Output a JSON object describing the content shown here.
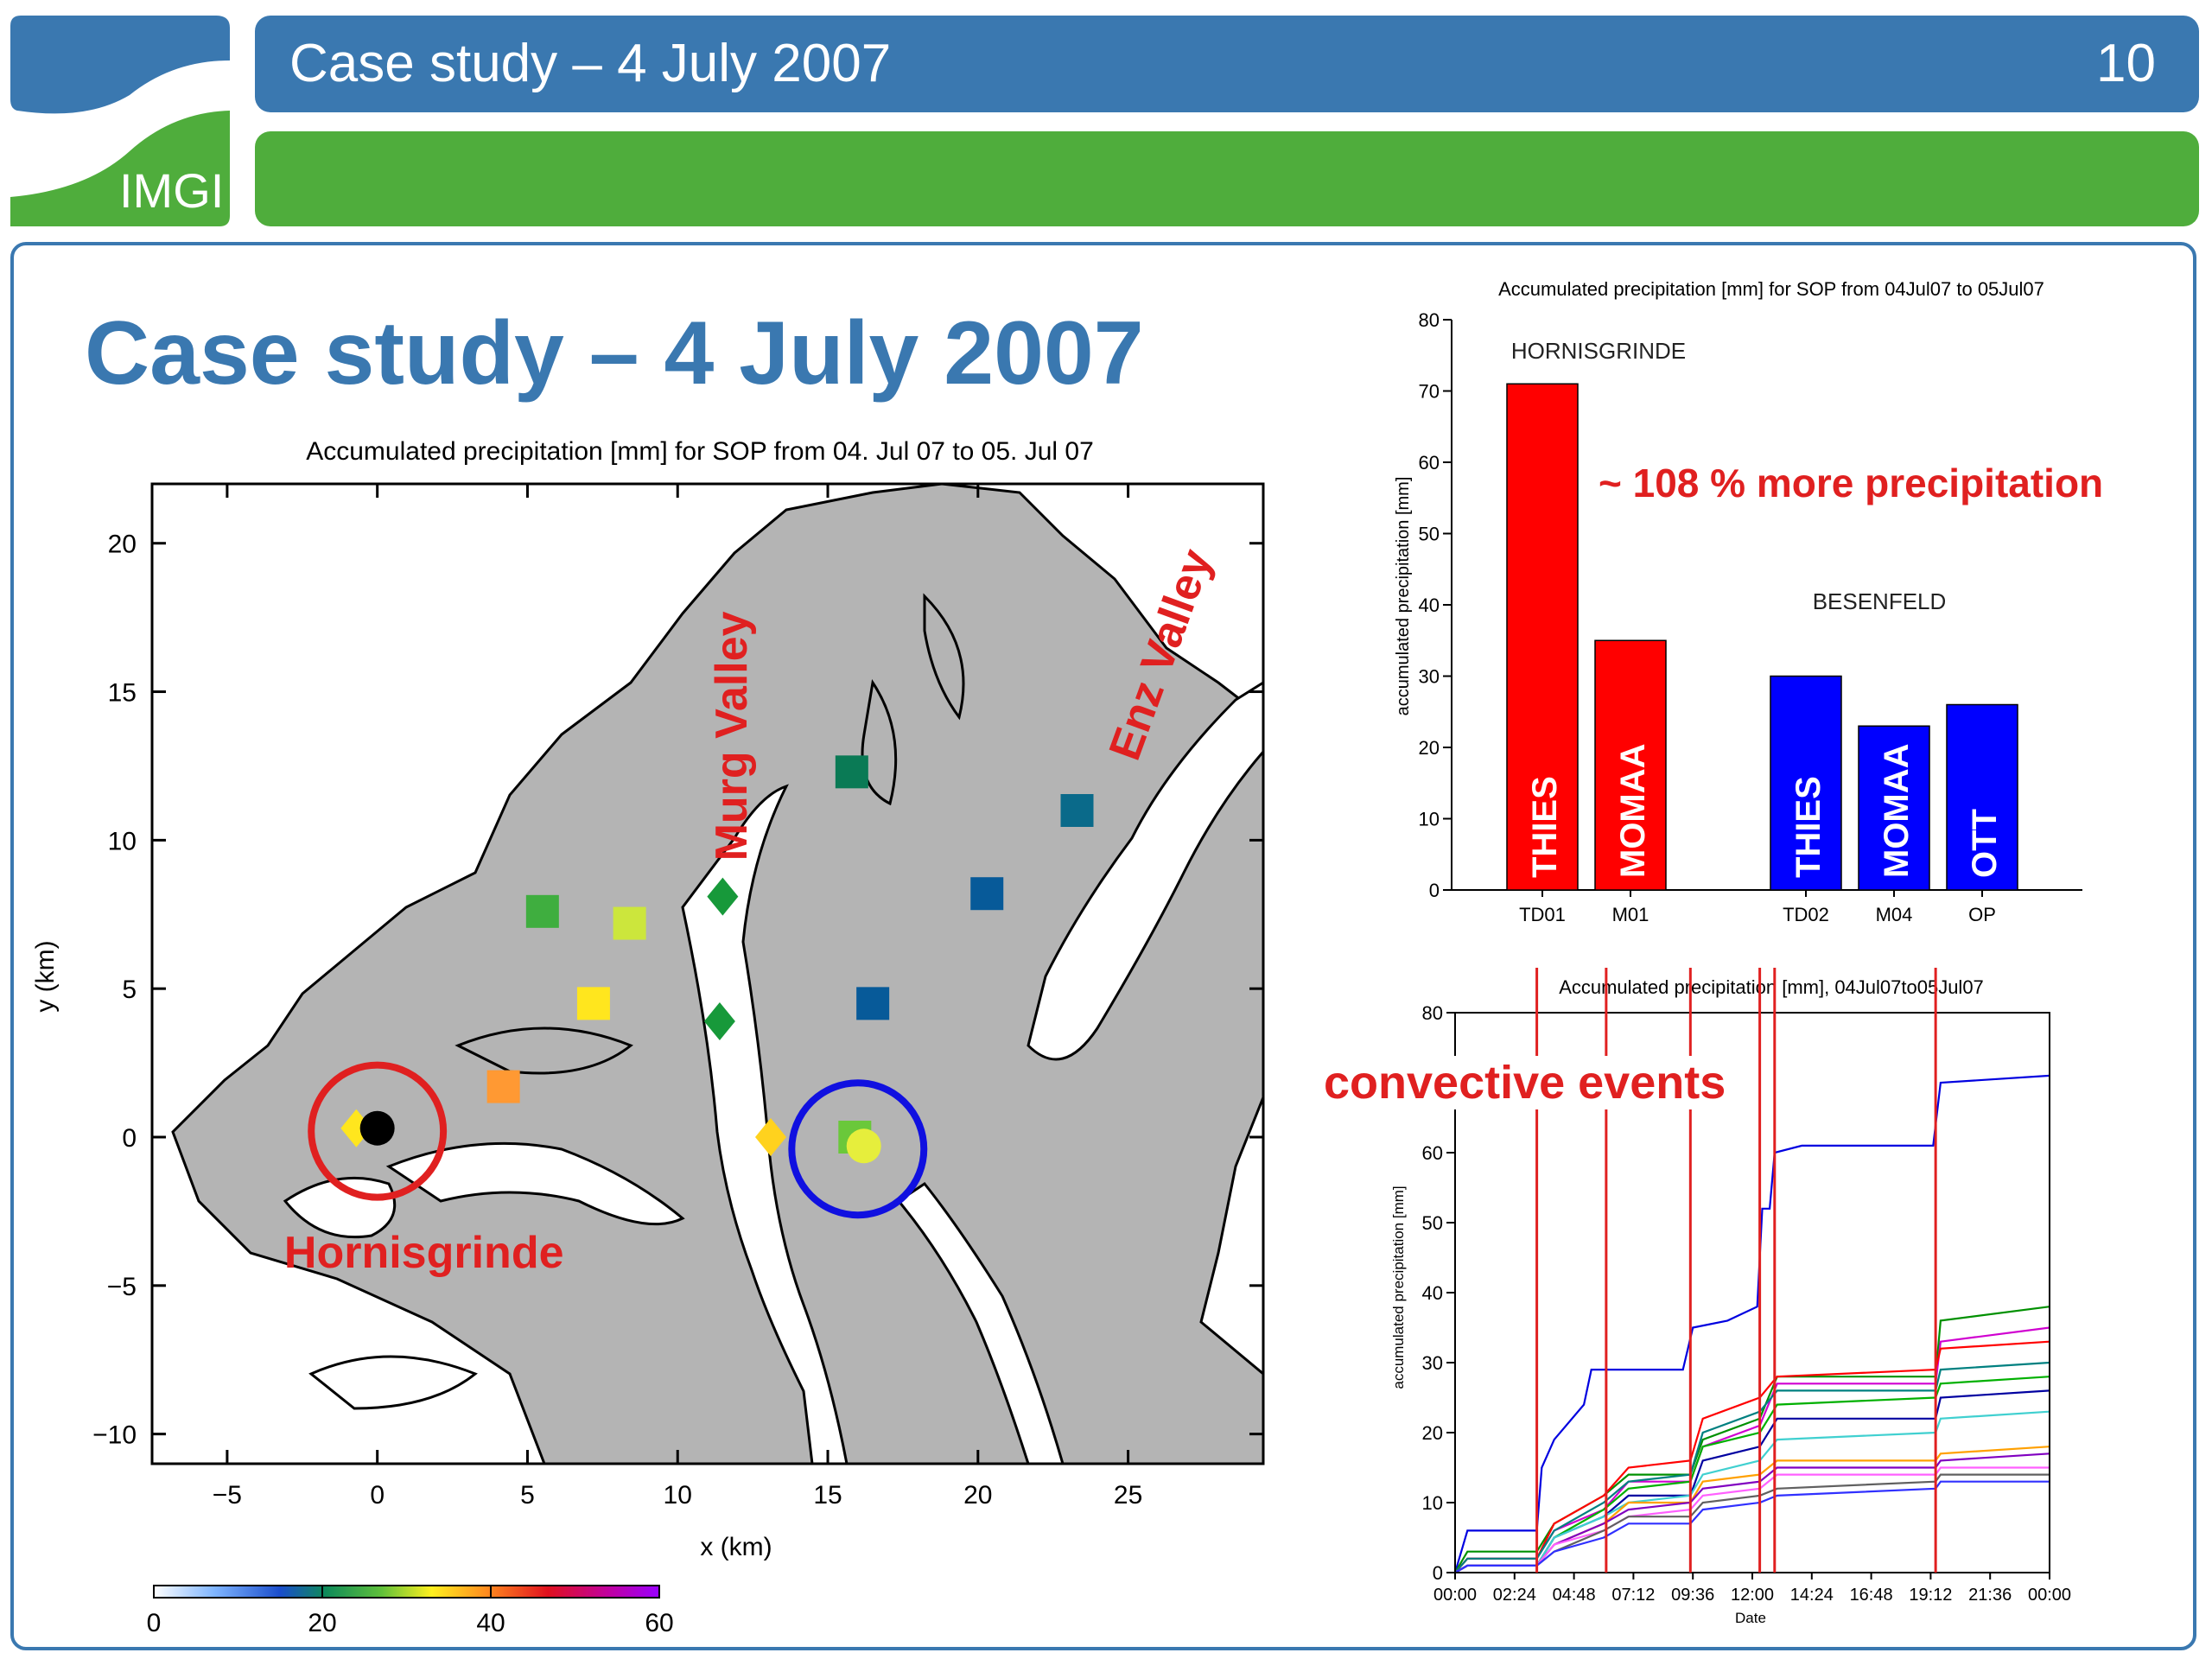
{
  "header": {
    "title": "Case study – 4 July 2007",
    "page_number": "10",
    "logo_text": "IMGI"
  },
  "slide": {
    "title": "Case study – 4 July 2007"
  },
  "colors": {
    "brand_blue": "#3a78b0",
    "brand_green": "#4fad3c",
    "hornisgrinde_red": "#ff0000",
    "besenfeld_blue": "#0000ff",
    "terrain_gray": "#b0b0b0"
  },
  "chart_data": [
    {
      "type": "scatter",
      "title": "Accumulated precipitation [mm] for SOP from 04. Jul 07 to 05. Jul 07",
      "xlabel": "x (km)",
      "ylabel": "y (km)",
      "xlim": [
        -7.5,
        29.5
      ],
      "ylim": [
        -11,
        22
      ],
      "xticks": [
        "−5",
        "0",
        "5",
        "10",
        "15",
        "20",
        "25"
      ],
      "yticks": [
        "−10",
        "−5",
        "0",
        "5",
        "10",
        "15",
        "20"
      ],
      "annotations": {
        "hornisgrinde": "Hornisgrinde",
        "murg": "Murg Valley",
        "enz": "Enz Valley"
      },
      "colorbar": {
        "min": 0,
        "max": 60,
        "ticks": [
          "0",
          "20",
          "40",
          "60"
        ]
      },
      "stations": [
        {
          "x": 15.8,
          "y": 12.3,
          "shape": "square",
          "color": "#0a7a55",
          "precip": 26
        },
        {
          "x": 23.3,
          "y": 11.0,
          "shape": "square",
          "color": "#0a6a8a",
          "precip": 22
        },
        {
          "x": 20.3,
          "y": 8.2,
          "shape": "square",
          "color": "#075a99",
          "precip": 20
        },
        {
          "x": 16.5,
          "y": 4.5,
          "shape": "square",
          "color": "#075a99",
          "precip": 20
        },
        {
          "x": 5.5,
          "y": 7.6,
          "shape": "square",
          "color": "#3fae3f",
          "precip": 26
        },
        {
          "x": 8.4,
          "y": 7.2,
          "shape": "square",
          "color": "#cce63c",
          "precip": 28
        },
        {
          "x": 7.2,
          "y": 4.5,
          "shape": "square",
          "color": "#ffe61e",
          "precip": 30
        },
        {
          "x": 4.2,
          "y": 1.7,
          "shape": "square",
          "color": "#ff9933",
          "precip": 35
        },
        {
          "x": 11.5,
          "y": 8.1,
          "shape": "diamond",
          "color": "#17993a",
          "precip": 24
        },
        {
          "x": 11.4,
          "y": 3.9,
          "shape": "diamond",
          "color": "#17993a",
          "precip": 24
        },
        {
          "x": 13.1,
          "y": 0.0,
          "shape": "diamond",
          "color": "#ffd21e",
          "precip": 30
        },
        {
          "x": 15.9,
          "y": 0.0,
          "shape": "square",
          "color": "#6ac83a",
          "precip": 27
        },
        {
          "x": 16.2,
          "y": -0.3,
          "shape": "circle",
          "color": "#e6ee3c",
          "precip": 28
        },
        {
          "x": -0.7,
          "y": 0.3,
          "shape": "diamond",
          "color": "#ffe61e",
          "precip": 30
        },
        {
          "x": 0.0,
          "y": 0.3,
          "shape": "circle",
          "color": "#000000",
          "precip": 71
        }
      ],
      "highlight_circles": [
        {
          "x": 0.0,
          "y": 0.2,
          "r_km": 2.2,
          "color": "#e02020"
        },
        {
          "x": 16.0,
          "y": -0.4,
          "r_km": 2.2,
          "color": "#1010e0"
        }
      ]
    },
    {
      "type": "bar",
      "title": "Accumulated precipitation [mm] for SOP from 04Jul07 to 05Jul07",
      "xlabel": "",
      "ylabel": "accumulated precipitation [mm]",
      "ylim": [
        0,
        80
      ],
      "yticks": [
        "0",
        "10",
        "20",
        "30",
        "40",
        "50",
        "60",
        "70",
        "80"
      ],
      "groups": [
        {
          "name": "HORNISGRINDE",
          "color": "#ff0000"
        },
        {
          "name": "BESENFELD",
          "color": "#0000ff"
        }
      ],
      "bars": [
        {
          "category": "TD01",
          "label": "THIES",
          "value": 71,
          "group": 0
        },
        {
          "category": "M01",
          "label": "MOMAA",
          "value": 35,
          "group": 0
        },
        {
          "category": "TD02",
          "label": "THIES",
          "value": 30,
          "group": 1
        },
        {
          "category": "M04",
          "label": "MOMAA",
          "value": 23,
          "group": 1
        },
        {
          "category": "OP",
          "label": "OTT",
          "value": 26,
          "group": 1
        }
      ],
      "annotation": "~ 108 % more precipitation"
    },
    {
      "type": "line",
      "title": "Accumulated precipitation [mm], 04Jul07to05Jul07",
      "xlabel": "Date",
      "ylabel": "accumulated precipitation [mm]",
      "ylim": [
        0,
        80
      ],
      "xlim_hours": [
        0,
        24
      ],
      "xticks": [
        "00:00",
        "02:24",
        "04:48",
        "07:12",
        "09:36",
        "12:00",
        "14:24",
        "16:48",
        "19:12",
        "21:36",
        "00:00"
      ],
      "yticks": [
        "0",
        "10",
        "20",
        "30",
        "40",
        "50",
        "60",
        "70",
        "80"
      ],
      "annotation": "convective events",
      "event_hours": [
        3.3,
        6.1,
        9.5,
        12.3,
        12.9,
        19.4
      ],
      "series": [
        {
          "color": "#0000e0",
          "points": [
            [
              0,
              0
            ],
            [
              0.5,
              6
            ],
            [
              3.3,
              6
            ],
            [
              3.5,
              15
            ],
            [
              4,
              19
            ],
            [
              5.2,
              24
            ],
            [
              5.5,
              29
            ],
            [
              9.2,
              29
            ],
            [
              9.6,
              35
            ],
            [
              11,
              36
            ],
            [
              12.2,
              38
            ],
            [
              12.4,
              52
            ],
            [
              12.7,
              52
            ],
            [
              12.9,
              60
            ],
            [
              14,
              61
            ],
            [
              19.3,
              61
            ],
            [
              19.6,
              70
            ],
            [
              24,
              71
            ]
          ]
        },
        {
          "color": "#009000",
          "points": [
            [
              0,
              0
            ],
            [
              0.5,
              3
            ],
            [
              3.3,
              3
            ],
            [
              4,
              7
            ],
            [
              6,
              11
            ],
            [
              7,
              14
            ],
            [
              9.5,
              14
            ],
            [
              10,
              19
            ],
            [
              12.3,
              22
            ],
            [
              13,
              28
            ],
            [
              19.4,
              28
            ],
            [
              19.6,
              36
            ],
            [
              24,
              38
            ]
          ]
        },
        {
          "color": "#d000d0",
          "points": [
            [
              0,
              0
            ],
            [
              0.5,
              2
            ],
            [
              3.3,
              2
            ],
            [
              4,
              6
            ],
            [
              6,
              9
            ],
            [
              7,
              13
            ],
            [
              9.5,
              13
            ],
            [
              10,
              18
            ],
            [
              12.3,
              21
            ],
            [
              13,
              27
            ],
            [
              19.4,
              27
            ],
            [
              19.6,
              33
            ],
            [
              24,
              35
            ]
          ]
        },
        {
          "color": "#ff0000",
          "points": [
            [
              0,
              0
            ],
            [
              0.5,
              2
            ],
            [
              3.3,
              2
            ],
            [
              4,
              7
            ],
            [
              6,
              11
            ],
            [
              7,
              15
            ],
            [
              9.5,
              16
            ],
            [
              10,
              22
            ],
            [
              12.3,
              25
            ],
            [
              13,
              28
            ],
            [
              19.4,
              29
            ],
            [
              19.6,
              32
            ],
            [
              24,
              33
            ]
          ]
        },
        {
          "color": "#008080",
          "points": [
            [
              0,
              0
            ],
            [
              0.5,
              2
            ],
            [
              3.3,
              2
            ],
            [
              4,
              6
            ],
            [
              6,
              10
            ],
            [
              7,
              13
            ],
            [
              9.5,
              14
            ],
            [
              10,
              20
            ],
            [
              12.3,
              23
            ],
            [
              13,
              26
            ],
            [
              19.4,
              26
            ],
            [
              19.6,
              29
            ],
            [
              24,
              30
            ]
          ]
        },
        {
          "color": "#00b000",
          "points": [
            [
              0,
              0
            ],
            [
              0.5,
              1
            ],
            [
              3.3,
              1
            ],
            [
              4,
              5
            ],
            [
              6,
              9
            ],
            [
              7,
              12
            ],
            [
              9.5,
              13
            ],
            [
              10,
              18
            ],
            [
              12.3,
              20
            ],
            [
              13,
              24
            ],
            [
              19.4,
              25
            ],
            [
              19.6,
              27
            ],
            [
              24,
              28
            ]
          ]
        },
        {
          "color": "#0000a0",
          "points": [
            [
              0,
              0
            ],
            [
              0.5,
              1
            ],
            [
              3.3,
              1
            ],
            [
              4,
              5
            ],
            [
              6,
              8
            ],
            [
              7,
              11
            ],
            [
              9.5,
              11
            ],
            [
              10,
              16
            ],
            [
              12.3,
              18
            ],
            [
              13,
              22
            ],
            [
              19.4,
              22
            ],
            [
              19.6,
              25
            ],
            [
              24,
              26
            ]
          ]
        },
        {
          "color": "#40d0d0",
          "points": [
            [
              0,
              0
            ],
            [
              0.5,
              1
            ],
            [
              3.3,
              1
            ],
            [
              4,
              5
            ],
            [
              6,
              8
            ],
            [
              7,
              10
            ],
            [
              9.5,
              11
            ],
            [
              10,
              14
            ],
            [
              12.3,
              16
            ],
            [
              13,
              19
            ],
            [
              19.4,
              20
            ],
            [
              19.6,
              22
            ],
            [
              24,
              23
            ]
          ]
        },
        {
          "color": "#ffa000",
          "points": [
            [
              0,
              0
            ],
            [
              0.5,
              1
            ],
            [
              3.3,
              1
            ],
            [
              4,
              4
            ],
            [
              6,
              7
            ],
            [
              7,
              10
            ],
            [
              9.5,
              10
            ],
            [
              10,
              13
            ],
            [
              12.3,
              14
            ],
            [
              13,
              16
            ],
            [
              19.4,
              16
            ],
            [
              19.6,
              17
            ],
            [
              24,
              18
            ]
          ]
        },
        {
          "color": "#8000c0",
          "points": [
            [
              0,
              0
            ],
            [
              0.5,
              1
            ],
            [
              3.3,
              1
            ],
            [
              4,
              4
            ],
            [
              6,
              7
            ],
            [
              7,
              9
            ],
            [
              9.5,
              10
            ],
            [
              10,
              12
            ],
            [
              12.3,
              13
            ],
            [
              13,
              15
            ],
            [
              19.4,
              15
            ],
            [
              19.6,
              16
            ],
            [
              24,
              17
            ]
          ]
        },
        {
          "color": "#ff60ff",
          "points": [
            [
              0,
              0
            ],
            [
              0.5,
              1
            ],
            [
              3.3,
              1
            ],
            [
              4,
              4
            ],
            [
              6,
              6
            ],
            [
              7,
              8
            ],
            [
              9.5,
              9
            ],
            [
              10,
              11
            ],
            [
              12.3,
              12
            ],
            [
              13,
              14
            ],
            [
              19.4,
              14
            ],
            [
              19.6,
              15
            ],
            [
              24,
              15
            ]
          ]
        },
        {
          "color": "#606060",
          "points": [
            [
              0,
              0
            ],
            [
              0.5,
              1
            ],
            [
              3.3,
              1
            ],
            [
              4,
              3
            ],
            [
              6,
              6
            ],
            [
              7,
              8
            ],
            [
              9.5,
              8
            ],
            [
              10,
              10
            ],
            [
              12.3,
              11
            ],
            [
              13,
              12
            ],
            [
              19.4,
              13
            ],
            [
              19.6,
              14
            ],
            [
              24,
              14
            ]
          ]
        },
        {
          "color": "#3030ff",
          "points": [
            [
              0,
              0
            ],
            [
              0.5,
              1
            ],
            [
              3.3,
              1
            ],
            [
              4,
              3
            ],
            [
              6,
              5
            ],
            [
              7,
              7
            ],
            [
              9.5,
              7
            ],
            [
              10,
              9
            ],
            [
              12.3,
              10
            ],
            [
              13,
              11
            ],
            [
              19.4,
              12
            ],
            [
              19.6,
              13
            ],
            [
              24,
              13
            ]
          ]
        }
      ]
    }
  ]
}
